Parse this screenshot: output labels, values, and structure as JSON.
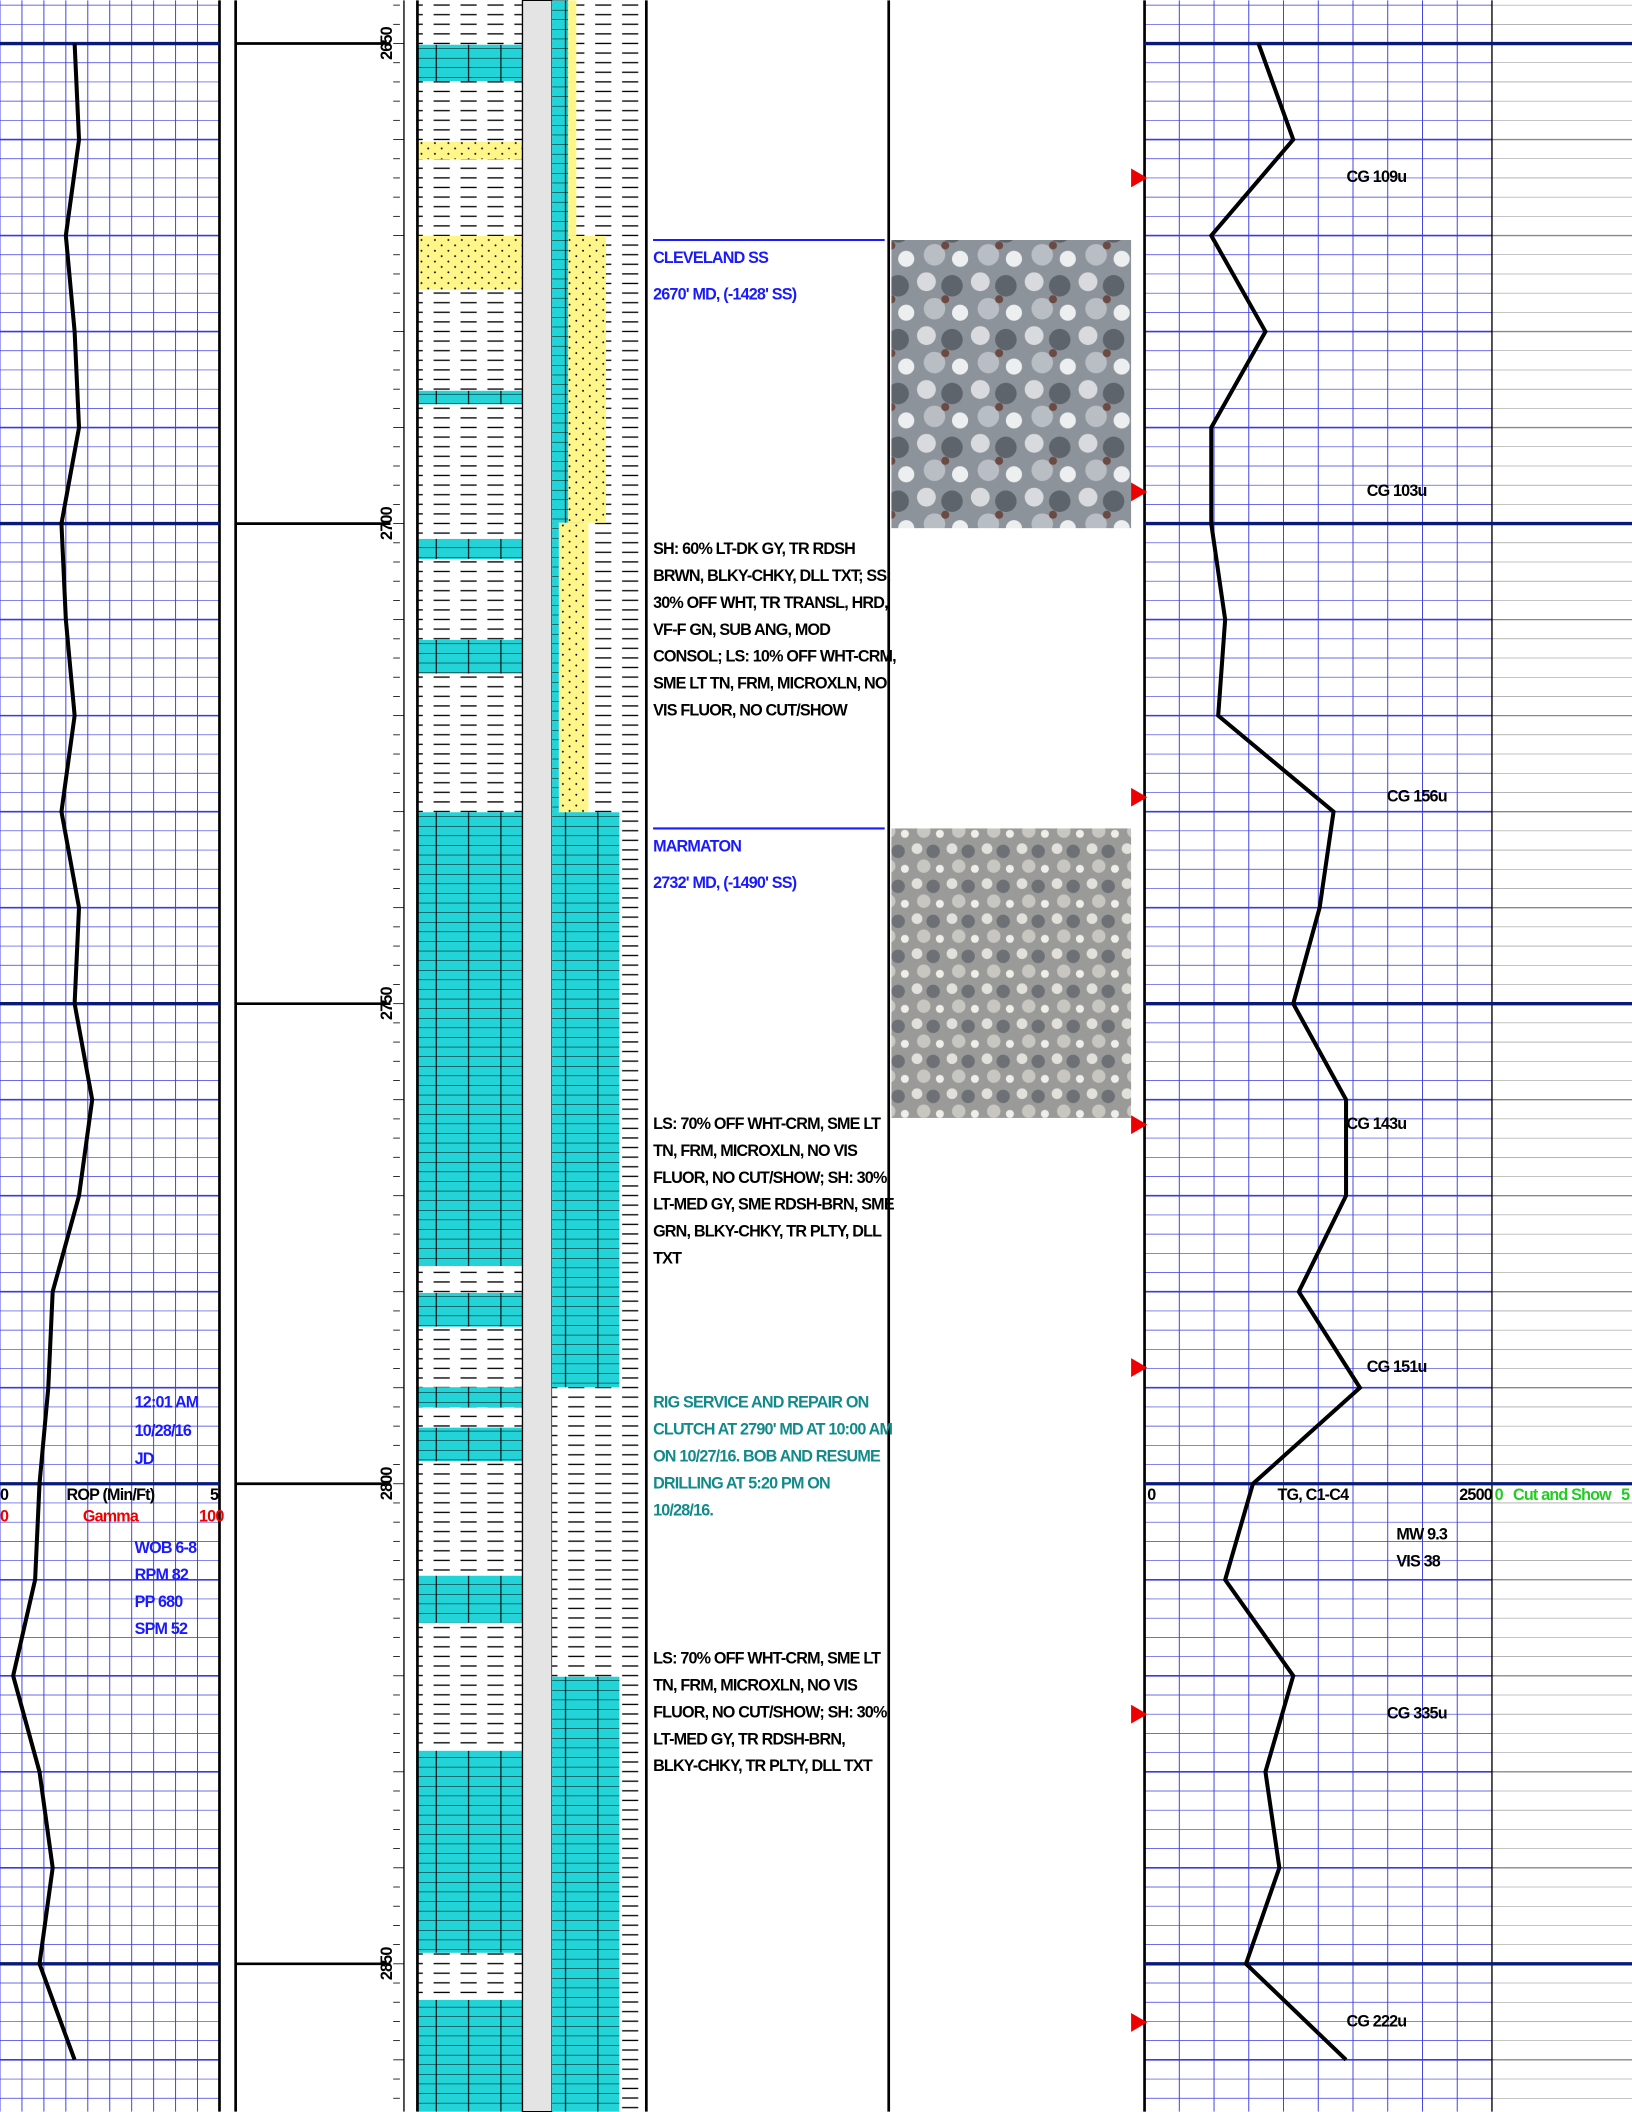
{
  "depth_range": [
    2645.5,
    2865.4
  ],
  "depth_ticks": [
    2650,
    2700,
    2750,
    2800,
    2850
  ],
  "tracks": {
    "rop": {
      "label": "ROP (Min/Ft)",
      "range": [
        0,
        5
      ]
    },
    "gamma": {
      "label": "Gamma",
      "range": [
        0,
        100
      ]
    },
    "gas": {
      "label": "TG, C1-C4",
      "range": [
        0,
        2500
      ]
    },
    "cut": {
      "label": "Cut and Show",
      "range": [
        0,
        5
      ]
    }
  },
  "formations": [
    {
      "name": "CLEVELAND SS",
      "depth": "2670' MD, (-1428' SS)"
    },
    {
      "name": "MARMATON",
      "depth": "2732' MD, (-1490' SS)"
    }
  ],
  "descriptions": [
    [
      "SH: 60% LT-DK GY, TR RDSH",
      "BRWN, BLKY-CHKY, DLL TXT; SS:",
      "30% OFF WHT, TR TRANSL, HRD,",
      "VF-F GN, SUB ANG, MOD",
      "CONSOL; LS: 10% OFF WHT-CRM,",
      "SME LT TN, FRM, MICROXLN, NO",
      "VIS FLUOR, NO CUT/SHOW"
    ],
    [
      "LS: 70% OFF WHT-CRM, SME LT",
      "TN, FRM, MICROXLN, NO VIS",
      "FLUOR, NO CUT/SHOW; SH: 30%",
      "LT-MED GY, SME RDSH-BRN, SME",
      "GRN, BLKY-CHKY, TR PLTY, DLL",
      "TXT"
    ],
    [
      "LS: 70% OFF WHT-CRM, SME LT",
      "TN, FRM, MICROXLN, NO VIS",
      "FLUOR, NO CUT/SHOW; SH: 30%",
      "LT-MED GY, TR RDSH-BRN,",
      "BLKY-CHKY, TR PLTY, DLL TXT"
    ]
  ],
  "note": [
    "RIG SERVICE AND REPAIR ON",
    "CLUTCH AT 2790' MD AT 10:00 AM",
    "ON 10/27/16. BOB AND RESUME",
    "DRILLING AT 5:20 PM ON",
    "10/28/16."
  ],
  "time_stamp": [
    "12:01 AM",
    "10/28/16",
    "JD"
  ],
  "drilling_params": [
    "WOB 6-8",
    "RPM 82",
    "PP 680",
    "SPM 52"
  ],
  "mud": [
    "MW 9.3",
    "VIS 38"
  ],
  "gas_peaks": [
    {
      "label": "CG 109u",
      "depth": 2664
    },
    {
      "label": "CG 103u",
      "depth": 2696.7
    },
    {
      "label": "CG 156u",
      "depth": 2728.5
    },
    {
      "label": "CG 143u",
      "depth": 2762.6
    },
    {
      "label": "CG 151u",
      "depth": 2787.9
    },
    {
      "label": "CG 335u",
      "depth": 2824
    },
    {
      "label": "CG 222u",
      "depth": 2856.1
    }
  ],
  "curves": {
    "depths": [
      2650,
      2660,
      2670,
      2680,
      2690,
      2700,
      2710,
      2720,
      2730,
      2740,
      2750,
      2760,
      2770,
      2780,
      2790,
      2800,
      2810,
      2820,
      2830,
      2840,
      2850,
      2860
    ],
    "rop": [
      1.7,
      1.8,
      1.5,
      1.7,
      1.8,
      1.4,
      1.5,
      1.7,
      1.4,
      1.8,
      1.7,
      2.1,
      1.8,
      1.2,
      1.1,
      0.9,
      0.8,
      0.3,
      0.9,
      1.2,
      0.9,
      1.7
    ],
    "tg": [
      820,
      1070,
      480,
      870,
      480,
      480,
      580,
      530,
      1360,
      1260,
      1070,
      1450,
      1450,
      1110,
      1550,
      780,
      580,
      1070,
      870,
      970,
      730,
      1450
    ]
  }
}
